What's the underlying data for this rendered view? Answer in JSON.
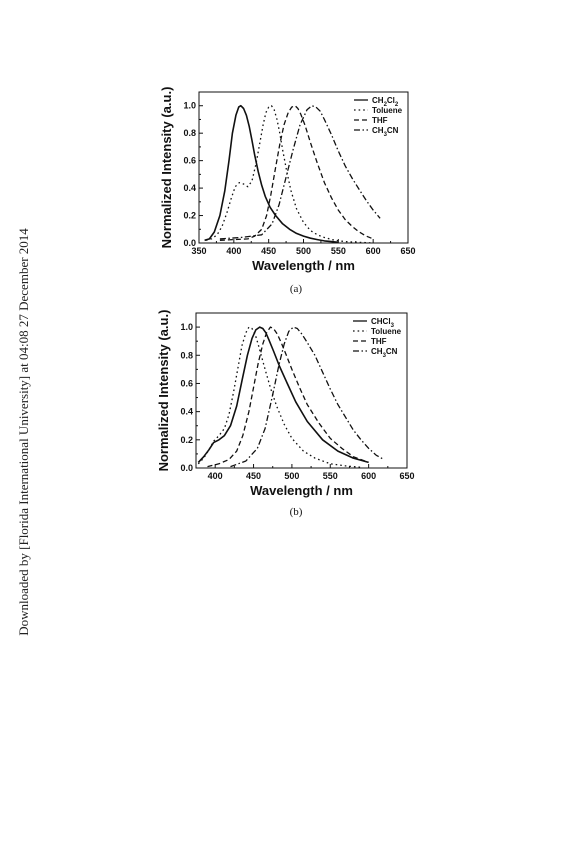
{
  "watermark": "Downloaded by [Florida International University] at 04:08 27 December 2014",
  "chart_data": [
    {
      "type": "line",
      "caption": "(a)",
      "xlabel": "Wavelength / nm",
      "ylabel": "Normalized Intensity (a.u.)",
      "xlim": [
        350,
        650
      ],
      "ylim": [
        0,
        1.1
      ],
      "xticks": [
        350,
        400,
        450,
        500,
        550,
        600,
        650
      ],
      "yticks": [
        0.0,
        0.2,
        0.4,
        0.6,
        0.8,
        1.0
      ],
      "legend_position": "top-right",
      "grid": false,
      "series": [
        {
          "name": "CH2Cl2",
          "name_main": "CH",
          "name_sub1": "2",
          "name_mid": "Cl",
          "name_sub2": "2",
          "dash": "solid",
          "x": [
            358,
            365,
            372,
            380,
            387,
            393,
            398,
            403,
            407,
            410,
            414,
            418,
            422,
            426,
            430,
            435,
            440,
            445,
            452,
            460,
            470,
            480,
            490,
            500,
            510,
            520,
            530,
            540,
            550
          ],
          "y": [
            0.02,
            0.03,
            0.08,
            0.2,
            0.38,
            0.6,
            0.8,
            0.93,
            0.99,
            1.0,
            0.98,
            0.93,
            0.85,
            0.75,
            0.64,
            0.52,
            0.42,
            0.34,
            0.26,
            0.2,
            0.14,
            0.1,
            0.07,
            0.05,
            0.035,
            0.025,
            0.015,
            0.01,
            0.005
          ]
        },
        {
          "name": "Toluene",
          "dash": "dot",
          "x": [
            360,
            368,
            376,
            383,
            390,
            396,
            402,
            408,
            414,
            420,
            426,
            432,
            437,
            442,
            446,
            450,
            454,
            458,
            462,
            466,
            470,
            476,
            482,
            490,
            500,
            510,
            520,
            530,
            545,
            560,
            575,
            590,
            600
          ],
          "y": [
            0.02,
            0.03,
            0.06,
            0.12,
            0.22,
            0.32,
            0.41,
            0.44,
            0.43,
            0.41,
            0.45,
            0.58,
            0.72,
            0.86,
            0.95,
            0.99,
            1.0,
            0.97,
            0.9,
            0.8,
            0.68,
            0.52,
            0.38,
            0.25,
            0.15,
            0.09,
            0.06,
            0.04,
            0.02,
            0.01,
            0.005,
            0.003,
            0.0
          ]
        },
        {
          "name": "THF",
          "dash": "dash",
          "x": [
            380,
            400,
            420,
            430,
            440,
            447,
            453,
            460,
            466,
            472,
            478,
            483,
            488,
            492,
            496,
            502,
            510,
            520,
            530,
            540,
            550,
            560,
            570,
            580,
            590,
            600
          ],
          "y": [
            0.02,
            0.025,
            0.03,
            0.05,
            0.1,
            0.2,
            0.35,
            0.55,
            0.72,
            0.86,
            0.95,
            0.99,
            1.0,
            0.98,
            0.94,
            0.86,
            0.73,
            0.58,
            0.44,
            0.33,
            0.24,
            0.17,
            0.12,
            0.08,
            0.05,
            0.03
          ]
        },
        {
          "name": "CH3CN",
          "name_main": "CH",
          "name_sub1": "3",
          "name_mid": "CN",
          "name_sub2": "",
          "dash": "dashdot",
          "x": [
            380,
            410,
            440,
            455,
            465,
            475,
            485,
            495,
            505,
            512,
            518,
            524,
            530,
            540,
            550,
            560,
            570,
            580,
            590,
            600,
            610
          ],
          "y": [
            0.03,
            0.04,
            0.06,
            0.14,
            0.28,
            0.48,
            0.68,
            0.86,
            0.97,
            1.0,
            0.99,
            0.96,
            0.9,
            0.79,
            0.67,
            0.56,
            0.47,
            0.39,
            0.31,
            0.24,
            0.18
          ]
        }
      ]
    },
    {
      "type": "line",
      "caption": "(b)",
      "xlabel": "Wavelength / nm",
      "ylabel": "Normalized Intensity (a.u.)",
      "xlim": [
        375,
        650
      ],
      "ylim": [
        0,
        1.1
      ],
      "xticks": [
        400,
        450,
        500,
        550,
        600,
        650
      ],
      "yticks": [
        0.0,
        0.2,
        0.4,
        0.6,
        0.8,
        1.0
      ],
      "legend_position": "top-right",
      "grid": false,
      "series": [
        {
          "name": "CHCl3",
          "name_main": "CHCl",
          "name_sub1": "3",
          "name_mid": "",
          "name_sub2": "",
          "dash": "solid",
          "x": [
            378,
            385,
            392,
            398,
            405,
            412,
            420,
            428,
            435,
            442,
            448,
            453,
            458,
            462,
            466,
            470,
            476,
            484,
            494,
            505,
            520,
            540,
            560,
            580,
            600
          ],
          "y": [
            0.04,
            0.08,
            0.13,
            0.18,
            0.2,
            0.23,
            0.3,
            0.44,
            0.62,
            0.8,
            0.92,
            0.98,
            1.0,
            0.99,
            0.96,
            0.91,
            0.83,
            0.72,
            0.6,
            0.47,
            0.33,
            0.2,
            0.12,
            0.07,
            0.04
          ]
        },
        {
          "name": "Toluene",
          "dash": "dot",
          "x": [
            378,
            385,
            392,
            398,
            405,
            412,
            418,
            424,
            430,
            435,
            440,
            444,
            448,
            452,
            456,
            460,
            465,
            472,
            480,
            490,
            500,
            515,
            530,
            550,
            570,
            590
          ],
          "y": [
            0.03,
            0.07,
            0.13,
            0.19,
            0.23,
            0.28,
            0.38,
            0.54,
            0.72,
            0.87,
            0.96,
            1.0,
            0.99,
            0.95,
            0.88,
            0.8,
            0.7,
            0.57,
            0.44,
            0.31,
            0.21,
            0.12,
            0.07,
            0.03,
            0.015,
            0.005
          ]
        },
        {
          "name": "THF",
          "dash": "dash",
          "x": [
            390,
            405,
            418,
            428,
            436,
            444,
            450,
            456,
            462,
            467,
            472,
            476,
            481,
            486,
            492,
            500,
            510,
            520,
            535,
            550,
            565,
            580,
            600
          ],
          "y": [
            0.01,
            0.03,
            0.06,
            0.12,
            0.23,
            0.4,
            0.57,
            0.74,
            0.88,
            0.96,
            1.0,
            0.99,
            0.95,
            0.89,
            0.81,
            0.7,
            0.57,
            0.45,
            0.32,
            0.21,
            0.14,
            0.08,
            0.04
          ]
        },
        {
          "name": "CH3CN",
          "name_main": "CH",
          "name_sub1": "3",
          "name_mid": "CN",
          "name_sub2": "",
          "dash": "dashdot",
          "x": [
            420,
            440,
            455,
            465,
            475,
            483,
            490,
            496,
            502,
            507,
            513,
            520,
            530,
            540,
            550,
            560,
            570,
            580,
            590,
            600,
            610,
            620
          ],
          "y": [
            0.01,
            0.05,
            0.14,
            0.28,
            0.52,
            0.73,
            0.88,
            0.97,
            1.0,
            0.99,
            0.95,
            0.89,
            0.8,
            0.68,
            0.56,
            0.45,
            0.36,
            0.27,
            0.2,
            0.14,
            0.09,
            0.06
          ]
        }
      ]
    }
  ]
}
